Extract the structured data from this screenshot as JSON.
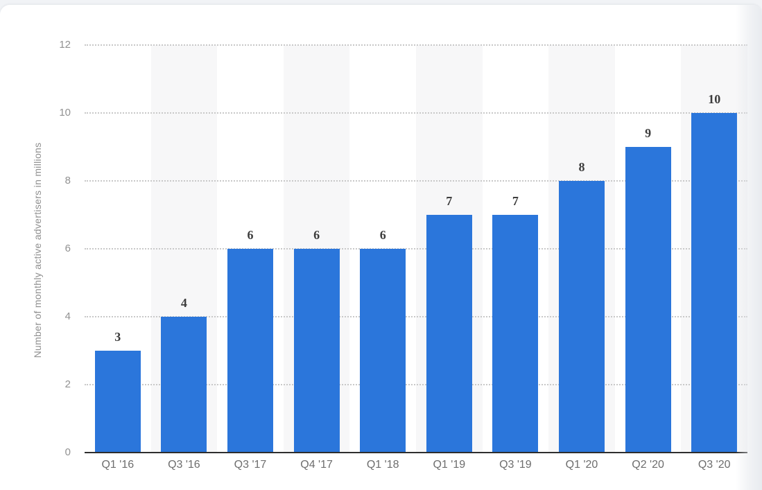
{
  "chart_data": {
    "type": "bar",
    "categories": [
      "Q1 '16",
      "Q3 '16",
      "Q3 '17",
      "Q4 '17",
      "Q1 '18",
      "Q1 '19",
      "Q3 '19",
      "Q1 '20",
      "Q2 '20",
      "Q3 '20"
    ],
    "values": [
      3,
      4,
      6,
      6,
      6,
      7,
      7,
      8,
      9,
      10
    ],
    "title": "",
    "xlabel": "",
    "ylabel": "Number of monthly active advertisers in millions",
    "yticks": [
      0,
      2,
      4,
      6,
      8,
      10,
      12
    ],
    "ylim": [
      0,
      12
    ],
    "legend": "none",
    "grid": "horizontal-dotted",
    "column_bands": "alternating",
    "colors": {
      "bar": "#2b76db",
      "band": "#f7f7f8",
      "gridline": "#c8c8c8",
      "axis_line": "#2e2e2e",
      "y_tick_text": "#919191",
      "x_tick_text": "#6d6d6d",
      "value_label_text": "#3d3d3d",
      "y_title_text": "#8f8f8f",
      "page_strip": "#f1f3f6",
      "card_background": "#ffffff"
    }
  }
}
